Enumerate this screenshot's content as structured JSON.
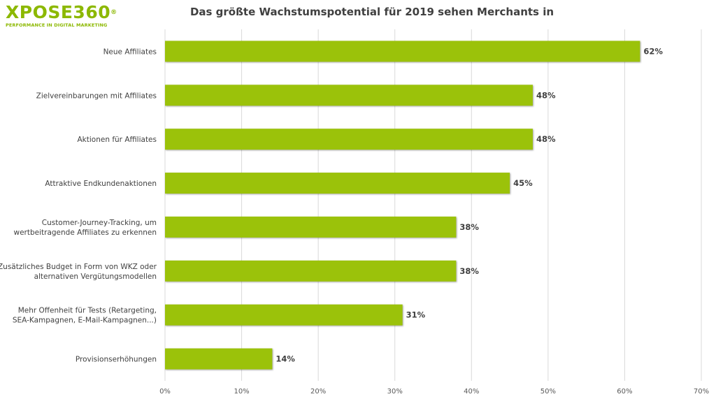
{
  "logo": {
    "name": "XPOSE360",
    "registered": "®",
    "tagline": "PERFORMANCE IN DIGITAL MARKETING"
  },
  "chart_data": {
    "type": "bar",
    "orientation": "horizontal",
    "title": "Das größte Wachstumspotential für 2019 sehen Merchants in",
    "categories": [
      [
        "Neue Affiliates"
      ],
      [
        "Zielvereinbarungen mit Affiliates"
      ],
      [
        "Aktionen für Affiliates"
      ],
      [
        "Attraktive Endkundenaktionen"
      ],
      [
        "Customer-Journey-Tracking, um",
        "wertbeitragende Affiliates zu erkennen"
      ],
      [
        "Zusätzliches Budget in Form von WKZ oder",
        "alternativen Vergütungsmodellen"
      ],
      [
        "Mehr Offenheit für Tests (Retargeting,",
        "SEA-Kampagnen, E-Mail-Kampagnen...)"
      ],
      [
        "Provisionserhöhungen"
      ]
    ],
    "values": [
      62,
      48,
      48,
      45,
      38,
      38,
      31,
      14
    ],
    "value_labels": [
      "62%",
      "48%",
      "48%",
      "45%",
      "38%",
      "38%",
      "31%",
      "14%"
    ],
    "xlim": [
      0,
      70
    ],
    "xticks": [
      "0%",
      "10%",
      "20%",
      "30%",
      "40%",
      "50%",
      "60%",
      "70%"
    ],
    "grid": "vertical",
    "bar_color": "#9bc20a",
    "xlabel": "",
    "ylabel": ""
  }
}
